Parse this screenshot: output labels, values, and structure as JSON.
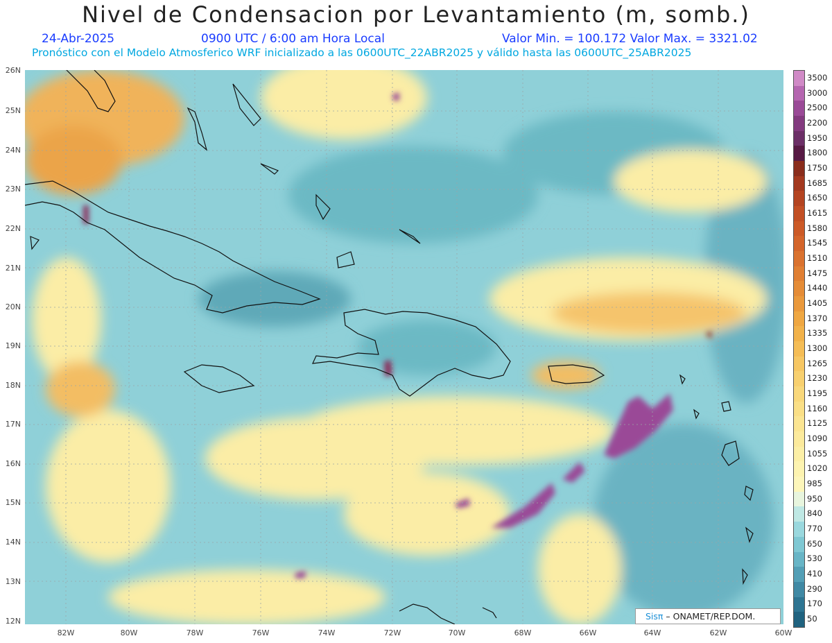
{
  "title": "Nivel de Condensacion por Levantamiento (m, somb.)",
  "date": "24-Abr-2025",
  "time": "0900 UTC / 6:00 am Hora Local",
  "minmax": "Valor Min. = 100.172  Valor Max. = 3321.02",
  "model_info": "Pronóstico con el Modelo Atmosferico WRF inicializado a las 0600UTC_22ABR2025 y válido hasta las  0600UTC_25ABR2025",
  "latitudes": [
    "26N",
    "25N",
    "24N",
    "23N",
    "22N",
    "21N",
    "20N",
    "19N",
    "18N",
    "17N",
    "16N",
    "15N",
    "14N",
    "13N",
    "12N"
  ],
  "longitudes": [
    "82W",
    "80W",
    "78W",
    "76W",
    "74W",
    "72W",
    "70W",
    "68W",
    "66W",
    "64W",
    "62W",
    "60W"
  ],
  "colorbar": {
    "labels": [
      "3500",
      "3000",
      "2500",
      "2200",
      "1950",
      "1800",
      "1750",
      "1685",
      "1650",
      "1615",
      "1580",
      "1545",
      "1510",
      "1475",
      "1440",
      "1405",
      "1370",
      "1335",
      "1300",
      "1265",
      "1230",
      "1195",
      "1160",
      "1125",
      "1090",
      "1055",
      "1020",
      "985",
      "950",
      "840",
      "770",
      "650",
      "530",
      "410",
      "290",
      "170",
      "50"
    ],
    "colors": [
      "#d08ac6",
      "#b566b0",
      "#9a4a97",
      "#833a7f",
      "#6c2f67",
      "#571a44",
      "#8a2d1c",
      "#a3391f",
      "#b44421",
      "#c24f24",
      "#cc5a27",
      "#d4652b",
      "#da722f",
      "#e07f33",
      "#e58c37",
      "#ea993c",
      "#ef a742",
      "#f2b24a",
      "#f5bd56",
      "#f7c763",
      "#f8d06f",
      "#f9d87b",
      "#fadf86",
      "#fbe592",
      "#fcea9c",
      "#fcefa6",
      "#fdf3b0",
      "#fdf6ba",
      "#e8f5de",
      "#bfe8e4",
      "#9ad8de",
      "#7fc8d3",
      "#68b5c6",
      "#539fb6",
      "#4089a4",
      "#2e7592",
      "#206380"
    ]
  },
  "credit": {
    "brand": "Sisπ",
    "text": " – ONAMET/REP.DOM."
  }
}
